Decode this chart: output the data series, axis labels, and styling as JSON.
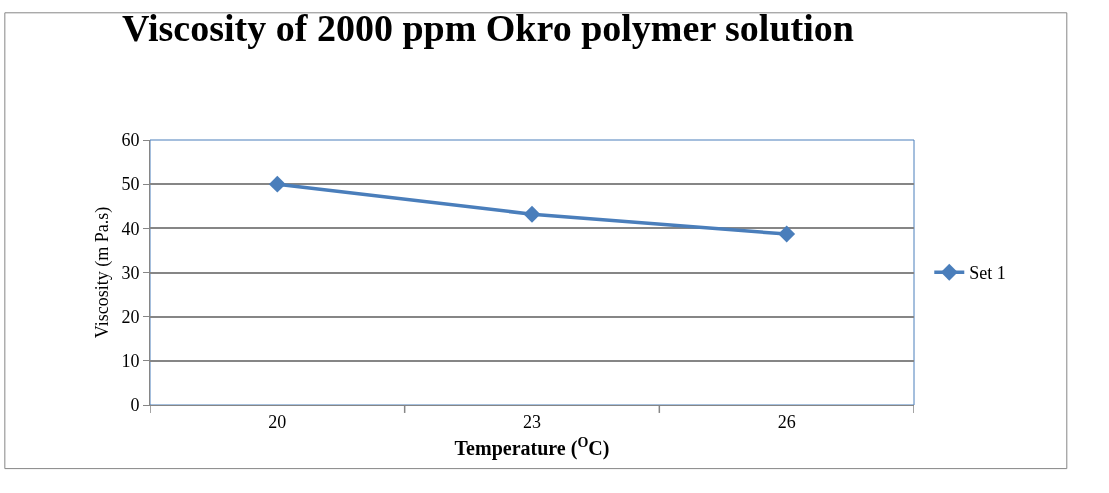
{
  "chart_data": {
    "type": "line",
    "title": "Viscosity of 2000 ppm Okro polymer solution",
    "xlabel": "Temperature ($^{O}$C)",
    "ylabel": "Viscosity (m Pa.s)",
    "categories": [
      "20",
      "23",
      "26"
    ],
    "series": [
      {
        "name": "Set 1",
        "color": "#4a7ebb",
        "values": [
          50,
          43.2,
          38.7
        ]
      }
    ],
    "ylim": [
      0,
      60
    ],
    "yticks": [
      0,
      10,
      20,
      30,
      40,
      50,
      60
    ],
    "grid": "y",
    "legend": "right",
    "marker": "diamond",
    "line_style": "solid"
  }
}
